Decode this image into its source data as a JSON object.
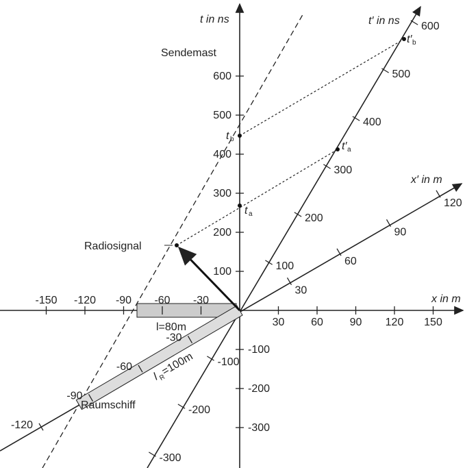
{
  "diagram": {
    "t_axis": {
      "label": "t in ns",
      "ticks": [
        -300,
        -200,
        -100,
        100,
        200,
        300,
        400,
        500,
        600
      ]
    },
    "x_axis": {
      "label": "x in m",
      "ticks": [
        -150,
        -120,
        -90,
        -60,
        -30,
        30,
        60,
        90,
        120,
        150
      ]
    },
    "t_prime_axis": {
      "label": "t′ in ns",
      "ticks": [
        -300,
        -200,
        -100,
        100,
        200,
        300,
        400,
        500,
        600
      ]
    },
    "x_prime_axis": {
      "label": "x′ in m",
      "ticks": [
        -120,
        -90,
        -60,
        -30,
        30,
        60,
        90,
        120
      ]
    },
    "labels": {
      "sendemast": "Sendemast",
      "radiosignal": "Radiosignal",
      "raumschiff": "Raumschiff",
      "l": "l=80m",
      "l_r": "l",
      "l_r_sub": "R",
      "l_r_rest": "=100m",
      "t_a": "t",
      "t_a_sub": "a",
      "t_b": "t",
      "t_b_sub": "b",
      "t_a_prime": "t′",
      "t_a_prime_sub": "a",
      "t_b_prime": "t′",
      "t_b_prime_sub": "b"
    }
  }
}
